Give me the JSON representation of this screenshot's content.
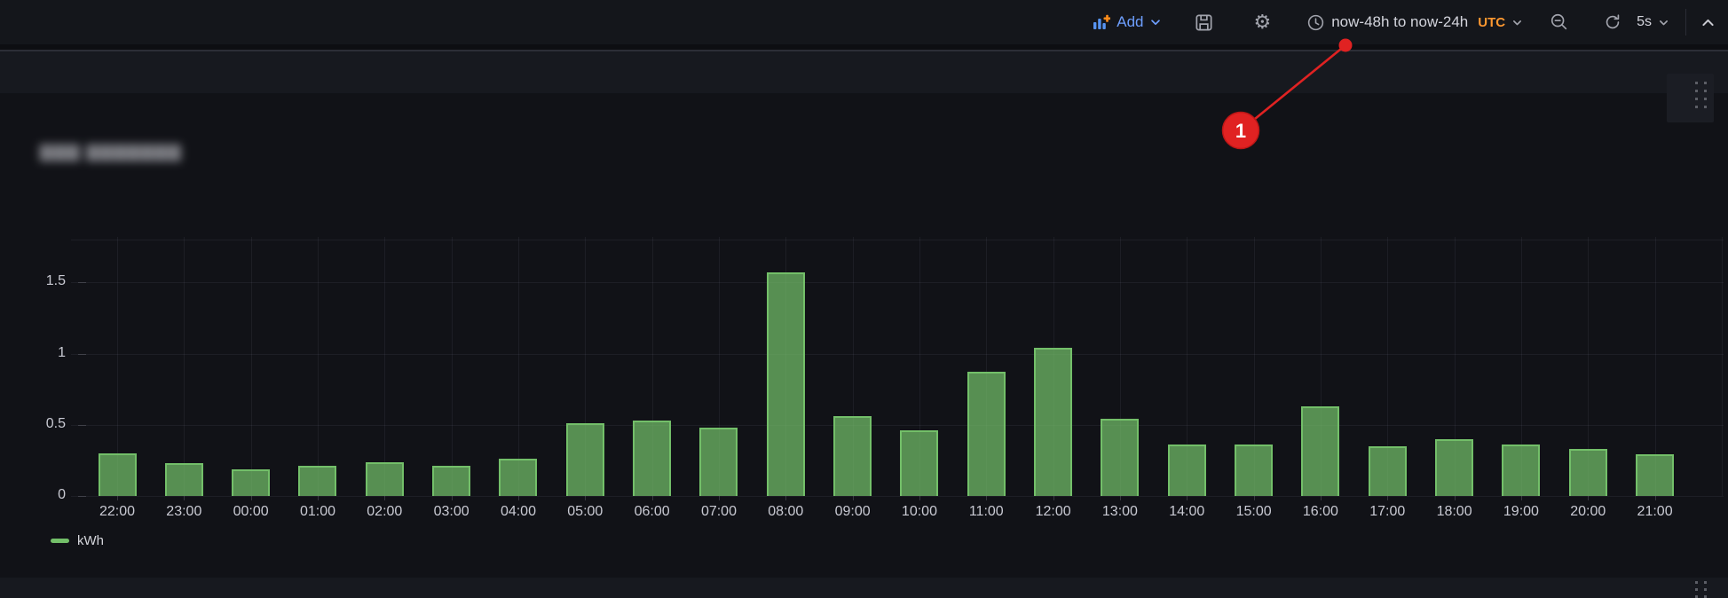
{
  "toolbar": {
    "add_label": "Add",
    "time_range": "now-48h to now-24h",
    "timezone": "UTC",
    "refresh_interval": "5s",
    "accent_blue": "#6E9FFF",
    "accent_orange": "#FF9830"
  },
  "panel": {
    "title_redacted": true,
    "title_placeholder": "▇▇▇ ▇▇▇▇▇▇▇"
  },
  "annotation": {
    "badge": "1",
    "color": "#E02222",
    "badge_center": [
      1398,
      147
    ],
    "pointer_tip": [
      1516,
      51
    ]
  },
  "chart_data": {
    "type": "bar",
    "title": "",
    "xlabel": "",
    "ylabel": "",
    "unit": "kWh",
    "categories": [
      "22:00",
      "23:00",
      "00:00",
      "01:00",
      "02:00",
      "03:00",
      "04:00",
      "05:00",
      "06:00",
      "07:00",
      "08:00",
      "09:00",
      "10:00",
      "11:00",
      "12:00",
      "13:00",
      "14:00",
      "15:00",
      "16:00",
      "17:00",
      "18:00",
      "19:00",
      "20:00",
      "21:00"
    ],
    "series": [
      {
        "name": "kWh",
        "color": "#73BF69",
        "values": [
          0.3,
          0.23,
          0.19,
          0.21,
          0.24,
          0.21,
          0.26,
          0.51,
          0.53,
          0.48,
          1.57,
          0.56,
          0.46,
          0.87,
          1.04,
          0.54,
          0.36,
          0.36,
          0.63,
          0.35,
          0.4,
          0.36,
          0.33,
          0.29
        ]
      }
    ],
    "ylim": [
      0,
      1.82
    ],
    "yticks": [
      0,
      0.5,
      1,
      1.5
    ],
    "ygrid": [
      0,
      0.5,
      1,
      1.5,
      1.8
    ],
    "grid": true,
    "legend_position": "bottom-left"
  }
}
